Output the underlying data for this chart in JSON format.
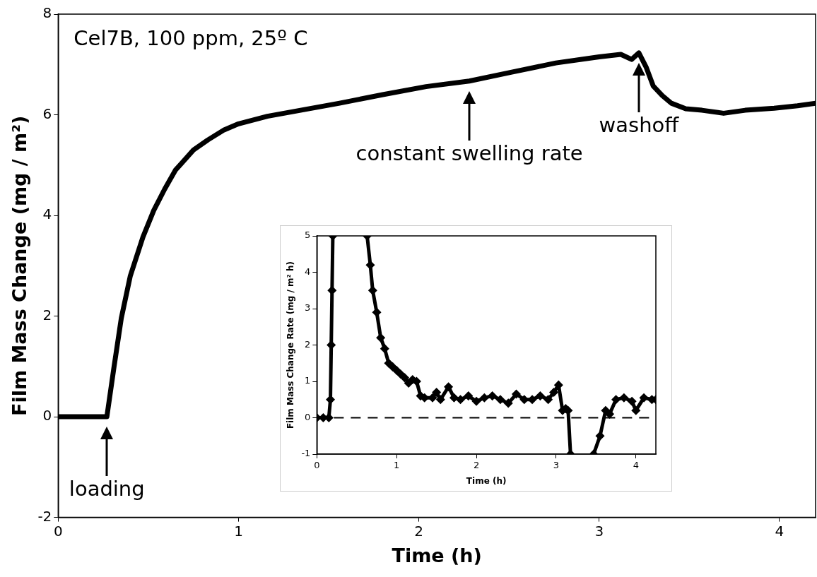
{
  "chart_data": [
    {
      "type": "line",
      "xlabel": "Time (h)",
      "ylabel": "Film Mass Change (mg / m²)",
      "xlim": [
        0,
        4.2
      ],
      "ylim": [
        -2,
        8
      ],
      "xticks": [
        0,
        1,
        2,
        3,
        4
      ],
      "yticks": [
        -2,
        0,
        2,
        4,
        6,
        8
      ],
      "marker": "none",
      "line_style": "solid",
      "annotations": [
        "Cel7B, 100 ppm, 25º C",
        {
          "text": "loading",
          "x": 0.27,
          "y": 0
        },
        {
          "text": "constant swelling rate",
          "x": 2.28,
          "y": 6.67
        },
        {
          "text": "washoff",
          "x": 3.22,
          "y": 7.23
        }
      ],
      "series": [
        {
          "color": "#000000",
          "x": [
            0,
            0.1,
            0.2,
            0.25,
            0.27,
            0.31,
            0.35,
            0.4,
            0.47,
            0.53,
            0.59,
            0.65,
            0.75,
            0.83,
            0.92,
            1.0,
            1.16,
            1.36,
            1.56,
            1.8,
            2.04,
            2.28,
            2.52,
            2.76,
            3.0,
            3.12,
            3.18,
            3.22,
            3.26,
            3.3,
            3.35,
            3.4,
            3.48,
            3.57,
            3.69,
            3.81,
            3.97,
            4.1,
            4.2
          ],
          "values": [
            0,
            0,
            0,
            0,
            0,
            1.0,
            1.96,
            2.8,
            3.57,
            4.1,
            4.52,
            4.9,
            5.3,
            5.5,
            5.7,
            5.82,
            5.97,
            6.1,
            6.23,
            6.4,
            6.56,
            6.67,
            6.85,
            7.03,
            7.15,
            7.2,
            7.1,
            7.23,
            6.95,
            6.57,
            6.38,
            6.23,
            6.12,
            6.09,
            6.03,
            6.09,
            6.13,
            6.18,
            6.23
          ]
        }
      ]
    },
    {
      "type": "line",
      "xlabel": "Time (h)",
      "ylabel": "Film Mass Change Rate (mg / m² h)",
      "xlim": [
        0,
        4.25
      ],
      "ylim": [
        -1,
        5
      ],
      "xticks": [
        0,
        1,
        2,
        3,
        4
      ],
      "yticks": [
        -1,
        0,
        1,
        2,
        3,
        4,
        5
      ],
      "marker": "diamond",
      "line_style": "solid",
      "ref_lines": [
        {
          "axis": "y",
          "value": 0,
          "line_style": "dashed",
          "color": "#000000"
        }
      ],
      "series": [
        {
          "color": "#000000",
          "x": [
            0,
            0.08,
            0.15,
            0.17,
            0.18,
            0.19,
            0.2,
            0.4,
            0.63,
            0.67,
            0.7,
            0.75,
            0.8,
            0.85,
            0.9,
            0.95,
            1.0,
            1.05,
            1.1,
            1.15,
            1.2,
            1.25,
            1.3,
            1.35,
            1.45,
            1.5,
            1.55,
            1.65,
            1.72,
            1.8,
            1.9,
            2.0,
            2.1,
            2.2,
            2.3,
            2.4,
            2.5,
            2.6,
            2.7,
            2.8,
            2.9,
            2.97,
            3.03,
            3.08,
            3.12,
            3.15,
            3.18,
            3.3,
            3.47,
            3.55,
            3.62,
            3.67,
            3.75,
            3.85,
            3.95,
            4.0,
            4.1,
            4.2,
            4.25
          ],
          "values": [
            0,
            0,
            0,
            0.5,
            2,
            3.5,
            5,
            null,
            5,
            4.2,
            3.5,
            2.9,
            2.2,
            1.9,
            1.5,
            1.4,
            1.3,
            1.2,
            1.1,
            0.95,
            1.05,
            1.0,
            0.6,
            0.55,
            0.55,
            0.7,
            0.5,
            0.85,
            0.55,
            0.5,
            0.6,
            0.45,
            0.55,
            0.6,
            0.5,
            0.4,
            0.65,
            0.5,
            0.5,
            0.6,
            0.5,
            0.7,
            0.9,
            0.2,
            0.25,
            0.2,
            -1,
            null,
            -1,
            -0.5,
            0.2,
            0.1,
            0.5,
            0.55,
            0.45,
            0.2,
            0.55,
            0.5,
            0.5
          ]
        }
      ]
    }
  ]
}
